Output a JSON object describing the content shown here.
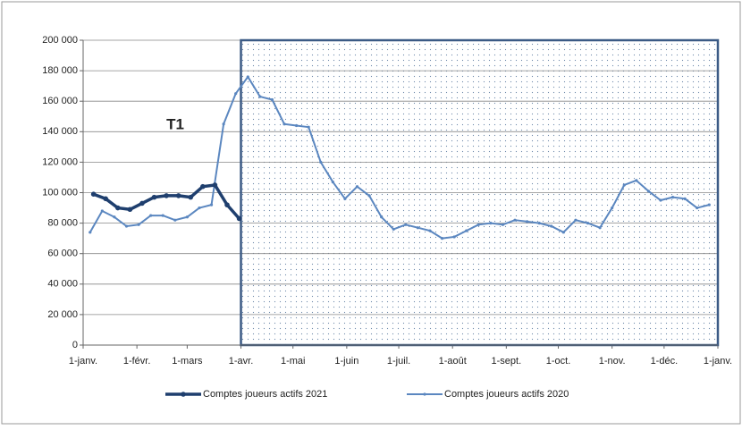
{
  "chart_data": {
    "type": "line",
    "annotation": "T1",
    "xlim": [
      0,
      366
    ],
    "xticks": [
      {
        "value": 0,
        "label": "1-janv."
      },
      {
        "value": 31,
        "label": "1-févr."
      },
      {
        "value": 60,
        "label": "1-mars"
      },
      {
        "value": 91,
        "label": "1-avr."
      },
      {
        "value": 121,
        "label": "1-mai"
      },
      {
        "value": 152,
        "label": "1-juin"
      },
      {
        "value": 182,
        "label": "1-juil."
      },
      {
        "value": 213,
        "label": "1-août"
      },
      {
        "value": 244,
        "label": "1-sept."
      },
      {
        "value": 274,
        "label": "1-oct."
      },
      {
        "value": 305,
        "label": "1-nov."
      },
      {
        "value": 335,
        "label": "1-déc."
      },
      {
        "value": 366,
        "label": "1-janv."
      }
    ],
    "ylim": [
      0,
      200000
    ],
    "yticks": [
      0,
      {
        "value": 20000,
        "label": "20 000"
      },
      {
        "value": 40000,
        "label": "40 000"
      },
      {
        "value": 60000,
        "label": "60 000"
      },
      {
        "value": 80000,
        "label": "80 000"
      },
      {
        "value": 100000,
        "label": "100 000"
      },
      {
        "value": 120000,
        "label": "120 000"
      },
      {
        "value": 140000,
        "label": "140 000"
      },
      {
        "value": 160000,
        "label": "160 000"
      },
      {
        "value": 180000,
        "label": "180 000"
      },
      {
        "value": 200000,
        "label": "200 000"
      }
    ],
    "grid": true,
    "legend": "bottom",
    "series": [
      {
        "name": "Comptes joueurs actifs 2021",
        "color": "#1f3f6e",
        "width": 3.5,
        "x": [
          6,
          13,
          20,
          27,
          34,
          41,
          48,
          55,
          62,
          69,
          76,
          83,
          90
        ],
        "values": [
          99000,
          96000,
          90000,
          89000,
          93000,
          97000,
          98000,
          98000,
          97000,
          104000,
          105000,
          92000,
          83000
        ]
      },
      {
        "name": "Comptes joueurs actifs 2020",
        "color": "#5b87c0",
        "width": 2,
        "x": [
          4,
          11,
          18,
          25,
          32,
          39,
          46,
          53,
          60,
          67,
          74,
          81,
          88,
          95,
          102,
          109,
          116,
          123,
          130,
          137,
          144,
          151,
          158,
          165,
          172,
          179,
          186,
          193,
          200,
          207,
          214,
          221,
          228,
          235,
          242,
          249,
          256,
          263,
          270,
          277,
          284,
          291,
          298,
          305,
          312,
          319,
          326,
          333,
          340,
          347,
          354,
          361
        ],
        "values": [
          74000,
          88000,
          84000,
          78000,
          79000,
          85000,
          85000,
          82000,
          84000,
          90000,
          92000,
          145000,
          165000,
          176000,
          163000,
          161000,
          145000,
          144000,
          143000,
          120000,
          107000,
          96000,
          104000,
          98000,
          84000,
          76000,
          79000,
          77000,
          75000,
          70000,
          71000,
          75000,
          79000,
          80000,
          79000,
          82000,
          81000,
          80000,
          78000,
          74000,
          82000,
          80000,
          77000,
          90000,
          105000,
          108000,
          101000,
          95000,
          97000,
          96000,
          90000,
          92000
        ]
      }
    ]
  }
}
